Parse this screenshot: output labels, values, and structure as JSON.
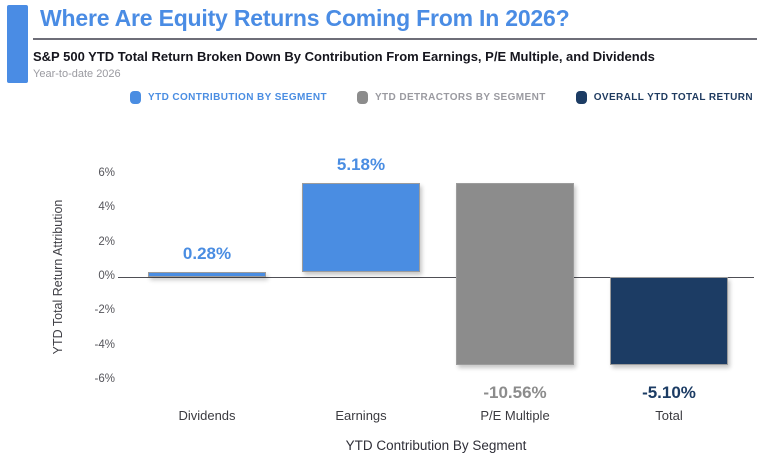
{
  "header": {
    "title": "Where Are Equity Returns Coming From In 2026?",
    "subtitle": "S&P 500 YTD Total Return Broken Down By Contribution From Earnings, P/E Multiple, and Dividends",
    "period": "Year-to-date 2026"
  },
  "legend": [
    {
      "label": "YTD CONTRIBUTION BY SEGMENT",
      "marker_color": "#4a8de2",
      "text_color": "#4a8de2"
    },
    {
      "label": "YTD DETRACTORS BY SEGMENT",
      "marker_color": "#8c8c8c",
      "text_color": "#9a9aa0"
    },
    {
      "label": "OVERALL YTD TOTAL RETURN",
      "marker_color": "#1c3c64",
      "text_color": "#1e3a5f"
    }
  ],
  "chart_data": {
    "type": "bar",
    "subtype": "waterfall",
    "title": "Where Are Equity Returns Coming From In 2026?",
    "xlabel": "YTD Contribution By Segment",
    "ylabel": "YTD Total Return Attribution",
    "categories": [
      "Dividends",
      "Earnings",
      "P/E Multiple",
      "Total"
    ],
    "values": [
      0.28,
      5.18,
      -10.56,
      -5.1
    ],
    "value_labels": [
      "0.28%",
      "5.18%",
      "-10.56%",
      "-5.10%"
    ],
    "bar_spans": [
      [
        0,
        0.28
      ],
      [
        0.28,
        5.46
      ],
      [
        5.46,
        -5.1
      ],
      [
        -5.1,
        0
      ]
    ],
    "bar_colors": [
      "#4a8de2",
      "#4a8de2",
      "#8c8c8c",
      "#1c3c64"
    ],
    "label_colors": [
      "#4a8de2",
      "#4a8de2",
      "#8c8c8c",
      "#1c3c64"
    ],
    "ylim": [
      -7,
      7
    ],
    "ytick_labels": [
      "6%",
      "4%",
      "2%",
      "0%",
      "-2%",
      "-4%",
      "-6%"
    ],
    "ytick_values": [
      6,
      4,
      2,
      0,
      -2,
      -4,
      -6
    ],
    "grid": false,
    "legend_position": "top"
  }
}
